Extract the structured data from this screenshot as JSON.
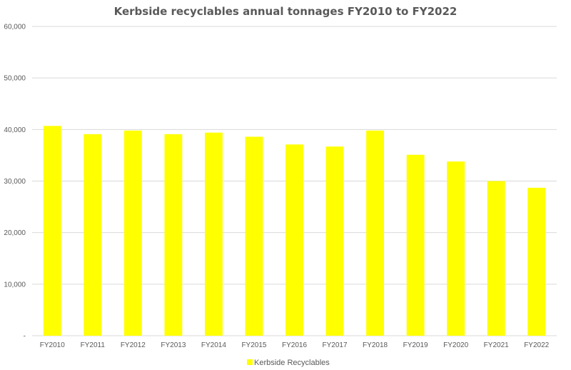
{
  "chart_data": {
    "type": "bar",
    "title": "Kerbside recyclables annual tonnages FY2010 to FY2022",
    "xlabel": "",
    "ylabel": "",
    "categories": [
      "FY2010",
      "FY2011",
      "FY2012",
      "FY2013",
      "FY2014",
      "FY2015",
      "FY2016",
      "FY2017",
      "FY2018",
      "FY2019",
      "FY2020",
      "FY2021",
      "FY2022"
    ],
    "series": [
      {
        "name": "Kerbside Recyclables",
        "color": "#ffff00",
        "values": [
          40700,
          39100,
          39800,
          39100,
          39400,
          38600,
          37100,
          36700,
          39800,
          35100,
          33800,
          30000,
          28700
        ]
      }
    ],
    "ylim": [
      0,
      60000
    ],
    "yticks": [
      0,
      10000,
      20000,
      30000,
      40000,
      50000,
      60000
    ],
    "ytick_labels": [
      "-",
      "10,000",
      "20,000",
      "30,000",
      "40,000",
      "50,000",
      "60,000"
    ],
    "grid": true,
    "legend_position": "bottom"
  }
}
